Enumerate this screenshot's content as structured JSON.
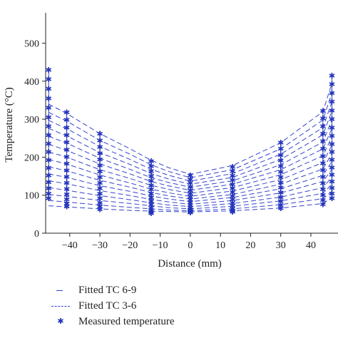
{
  "chart_data": {
    "type": "line",
    "xlabel": "Distance (mm)",
    "ylabel": "Temperature (°C)",
    "xlim": [
      -48,
      49
    ],
    "ylim": [
      0,
      580
    ],
    "xticks": [
      -40,
      -30,
      -20,
      -10,
      0,
      10,
      20,
      30,
      40
    ],
    "xtick_labels": [
      "−40",
      "−30",
      "−20",
      "−10",
      "0",
      "10",
      "20",
      "30",
      "40"
    ],
    "yticks": [
      0,
      100,
      200,
      300,
      400,
      500
    ],
    "grid": false,
    "legend_position": "bottom-left",
    "colors": {
      "series": "#3344cc",
      "marker": "#2233bb"
    },
    "series": [
      {
        "name": "Fitted TC 6-9",
        "style": "dash-short"
      },
      {
        "name": "Fitted TC 3-6",
        "style": "dash-long"
      },
      {
        "name": "Measured temperature",
        "style": "star-marker"
      }
    ],
    "curves": [
      {
        "x": [
          -47,
          -41,
          -30,
          -20,
          -13,
          -7,
          0,
          14,
          30,
          44,
          47
        ],
        "y": [
          340,
          315,
          262,
          222,
          192,
          172,
          155,
          178,
          238,
          320,
          395
        ]
      },
      {
        "x": [
          -47,
          -41,
          -30,
          -20,
          -13,
          -7,
          0,
          14,
          30,
          44,
          47
        ],
        "y": [
          318,
          295,
          244,
          208,
          180,
          162,
          146,
          167,
          222,
          298,
          370
        ]
      },
      {
        "x": [
          -47,
          -41,
          -30,
          -20,
          -13,
          -7,
          0,
          14,
          30,
          44,
          47
        ],
        "y": [
          297,
          275,
          228,
          194,
          168,
          152,
          137,
          157,
          208,
          278,
          346
        ]
      },
      {
        "x": [
          -47,
          -41,
          -30,
          -20,
          -13,
          -7,
          0,
          14,
          30,
          44,
          47
        ],
        "y": [
          276,
          256,
          212,
          181,
          157,
          142,
          129,
          147,
          194,
          259,
          322
        ]
      },
      {
        "x": [
          -47,
          -41,
          -30,
          -20,
          -13,
          -7,
          0,
          14,
          30,
          44,
          47
        ],
        "y": [
          255,
          237,
          197,
          168,
          146,
          133,
          121,
          138,
          180,
          240,
          299
        ]
      },
      {
        "x": [
          -47,
          -41,
          -30,
          -20,
          -13,
          -7,
          0,
          14,
          30,
          44,
          47
        ],
        "y": [
          234,
          218,
          182,
          156,
          136,
          124,
          113,
          129,
          167,
          222,
          276
        ]
      },
      {
        "x": [
          -47,
          -41,
          -30,
          -20,
          -13,
          -7,
          0,
          14,
          30,
          44,
          47
        ],
        "y": [
          214,
          200,
          167,
          144,
          126,
          115,
          105,
          120,
          154,
          204,
          254
        ]
      },
      {
        "x": [
          -47,
          -41,
          -30,
          -20,
          -13,
          -7,
          0,
          14,
          30,
          44,
          47
        ],
        "y": [
          194,
          182,
          153,
          132,
          116,
          106,
          97,
          111,
          141,
          186,
          232
        ]
      },
      {
        "x": [
          -47,
          -41,
          -30,
          -20,
          -13,
          -7,
          0,
          14,
          30,
          44,
          47
        ],
        "y": [
          175,
          164,
          139,
          121,
          107,
          98,
          90,
          102,
          129,
          169,
          210
        ]
      },
      {
        "x": [
          -47,
          -41,
          -30,
          -20,
          -13,
          -7,
          0,
          14,
          30,
          44,
          47
        ],
        "y": [
          156,
          147,
          125,
          110,
          98,
          90,
          83,
          94,
          117,
          152,
          189
        ]
      },
      {
        "x": [
          -47,
          -41,
          -30,
          -20,
          -13,
          -7,
          0,
          14,
          30,
          44,
          47
        ],
        "y": [
          138,
          130,
          112,
          99,
          89,
          82,
          76,
          86,
          106,
          136,
          168
        ]
      },
      {
        "x": [
          -47,
          -41,
          -30,
          -20,
          -13,
          -7,
          0,
          14,
          30,
          44,
          47
        ],
        "y": [
          120,
          113,
          99,
          88,
          80,
          74,
          70,
          78,
          95,
          120,
          148
        ]
      },
      {
        "x": [
          -47,
          -41,
          -30,
          -20,
          -13,
          -7,
          0,
          14,
          30,
          44,
          47
        ],
        "y": [
          102,
          97,
          86,
          78,
          72,
          67,
          64,
          71,
          85,
          105,
          129
        ]
      },
      {
        "x": [
          -47,
          -41,
          -30,
          -20,
          -13,
          -7,
          0,
          14,
          30,
          44,
          47
        ],
        "y": [
          86,
          82,
          74,
          68,
          64,
          61,
          59,
          64,
          75,
          91,
          110
        ]
      },
      {
        "x": [
          -47,
          -41,
          -30,
          -20,
          -13,
          -7,
          0,
          14,
          30,
          44,
          47
        ],
        "y": [
          72,
          69,
          64,
          60,
          58,
          57,
          56,
          59,
          66,
          78,
          94
        ]
      }
    ],
    "measured": [
      {
        "x": -47,
        "y": [
          430,
          405,
          380,
          355,
          330,
          305,
          282,
          258,
          236,
          214,
          192,
          172,
          152,
          134,
          118,
          104,
          92
        ]
      },
      {
        "x": -41,
        "y": [
          318,
          298,
          278,
          258,
          239,
          220,
          201,
          183,
          165,
          148,
          132,
          116,
          102,
          89,
          78,
          70
        ]
      },
      {
        "x": -30,
        "y": [
          262,
          244,
          227,
          210,
          194,
          178,
          162,
          147,
          132,
          118,
          104,
          92,
          80,
          70,
          63
        ]
      },
      {
        "x": -13,
        "y": [
          190,
          176,
          163,
          150,
          138,
          126,
          115,
          104,
          94,
          84,
          75,
          67,
          61,
          56,
          53
        ]
      },
      {
        "x": 0,
        "y": [
          152,
          142,
          132,
          122,
          113,
          104,
          96,
          88,
          81,
          74,
          68,
          63,
          59,
          56,
          54
        ]
      },
      {
        "x": 14,
        "y": [
          175,
          163,
          151,
          140,
          129,
          118,
          108,
          98,
          89,
          80,
          72,
          65,
          60,
          56
        ]
      },
      {
        "x": 30,
        "y": [
          238,
          222,
          206,
          191,
          176,
          161,
          147,
          133,
          120,
          107,
          95,
          84,
          74,
          66
        ]
      },
      {
        "x": 44,
        "y": [
          322,
          302,
          282,
          262,
          242,
          222,
          203,
          184,
          166,
          148,
          131,
          115,
          100,
          87,
          76
        ]
      },
      {
        "x": 47,
        "y": [
          415,
          392,
          369,
          346,
          323,
          300,
          278,
          256,
          235,
          214,
          193,
          173,
          154,
          136,
          119,
          104,
          92
        ]
      }
    ]
  }
}
